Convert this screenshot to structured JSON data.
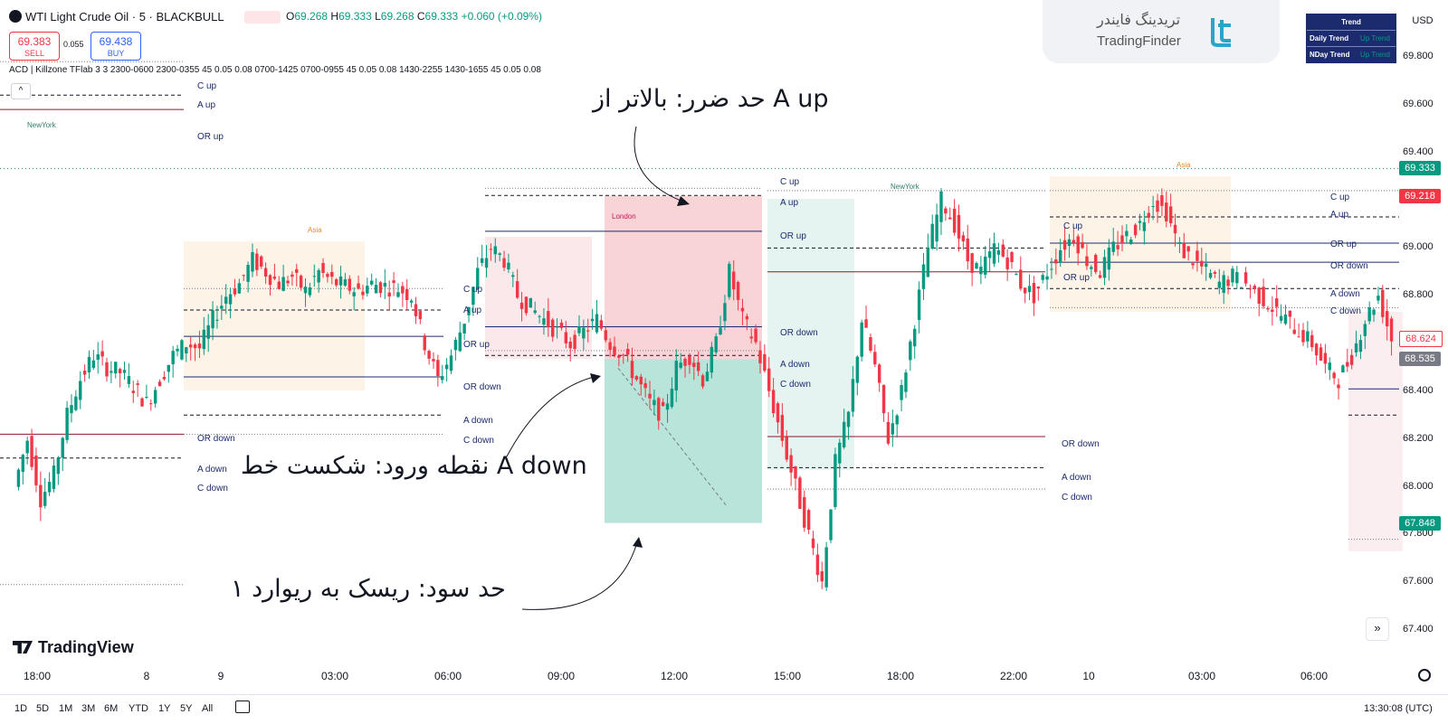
{
  "header": {
    "symbol_title": "WTI Light Crude Oil · 5 · BLACKBULL",
    "ohlc": {
      "o_label": "O",
      "o": "69.268",
      "h_label": "H",
      "h": "69.333",
      "l_label": "L",
      "l": "69.268",
      "c_label": "C",
      "c": "69.333",
      "change": "+0.060 (+0.09%)"
    },
    "sell_price": "69.383",
    "sell_label": "SELL",
    "spread": "0.055",
    "buy_price": "69.438",
    "buy_label": "BUY",
    "indicator_line": "ACD | Killzone TFlab 3 3 2300-0600 2300-0355 45 0.05 0.08 0700-1425 0700-0955 45 0.05 0.08 1430-2255 1430-1655 45 0.05 0.08",
    "collapse_glyph": "^"
  },
  "branding": {
    "tf_persian": "تریدینگ فایندر",
    "tf_english": "TradingFinder",
    "tradingview": "TradingView"
  },
  "trend_table": {
    "header": "Trend",
    "rows": [
      {
        "label": "Daily Trend",
        "value": "Up Trend"
      },
      {
        "label": "NDay Trend",
        "value": "Up Trend"
      }
    ]
  },
  "currency": "USD",
  "price_axis": {
    "ticks": [
      "69.800",
      "69.600",
      "69.400",
      "69.200",
      "69.000",
      "68.800",
      "68.600",
      "68.400",
      "68.200",
      "68.000",
      "67.800",
      "67.600",
      "67.400"
    ],
    "tags": [
      {
        "value": "69.333",
        "color": "#089981"
      },
      {
        "value": "69.218",
        "color": "#f23645"
      },
      {
        "value": "68.624",
        "color": "#ffffff"
      },
      {
        "value": "68.535",
        "color": "#787b86"
      },
      {
        "value": "67.848",
        "color": "#089981"
      }
    ]
  },
  "time_axis": [
    "18:00",
    "8",
    "9",
    "03:00",
    "06:00",
    "09:00",
    "12:00",
    "15:00",
    "18:00",
    "22:00",
    "10",
    "03:00",
    "06:00"
  ],
  "range_buttons": [
    "1D",
    "5D",
    "1M",
    "3M",
    "6M",
    "YTD",
    "1Y",
    "5Y",
    "All"
  ],
  "clock": "13:30:08 (UTC)",
  "sessions": {
    "asia": "Asia",
    "london": "London",
    "newyork": "NewYork"
  },
  "levels": {
    "c_up": "C up",
    "a_up": "A up",
    "or_up": "OR up",
    "or_down": "OR down",
    "a_down": "A down",
    "c_down": "C down"
  },
  "annotations": {
    "stop_loss": "حد ضرر: بالاتر از A up",
    "entry": "نقطه ورود: شکست خط  A down",
    "take_profit": "حد سود: ریسک به ریوارد ۱"
  },
  "colors": {
    "up": "#089981",
    "down": "#f23645",
    "risk_zone": "#f7c5c9",
    "reward_zone": "#a8ddd0",
    "asia_fill": "#fdf3e7",
    "london_fill": "#fbe8ea",
    "newyork_fill": "#e6f4f1"
  },
  "chart_data": {
    "type": "candlestick",
    "ylim": [
      67.4,
      69.9
    ],
    "current_price": 69.333,
    "trade": {
      "stop": 69.218,
      "entry": 68.535,
      "target": 67.848
    },
    "price_path": [
      68.0,
      68.2,
      67.95,
      68.05,
      68.3,
      68.45,
      68.55,
      68.5,
      68.48,
      68.42,
      68.35,
      68.45,
      68.55,
      68.6,
      68.58,
      68.7,
      68.8,
      68.85,
      68.95,
      68.9,
      68.85,
      68.88,
      68.82,
      68.9,
      68.86,
      68.84,
      68.82,
      68.85,
      68.84,
      68.83,
      68.8,
      68.6,
      68.45,
      68.55,
      68.7,
      68.9,
      69.0,
      68.95,
      68.8,
      68.75,
      68.7,
      68.65,
      68.6,
      68.65,
      68.7,
      68.6,
      68.55,
      68.45,
      68.35,
      68.3,
      68.5,
      68.55,
      68.45,
      68.6,
      68.9,
      68.7,
      68.6,
      68.4,
      68.2,
      68.0,
      67.8,
      67.6,
      68.1,
      68.3,
      68.7,
      68.5,
      68.2,
      68.4,
      68.7,
      69.0,
      69.2,
      69.1,
      68.95,
      68.9,
      69.0,
      68.95,
      68.85,
      68.8,
      68.9,
      69.0,
      69.05,
      68.95,
      68.9,
      69.0,
      69.05,
      69.1,
      69.2,
      69.15,
      69.0,
      68.95,
      68.9,
      68.85,
      68.88,
      68.85,
      68.8,
      68.75,
      68.7,
      68.65,
      68.6,
      68.5,
      68.45,
      68.55,
      68.7,
      68.8,
      68.62
    ]
  }
}
